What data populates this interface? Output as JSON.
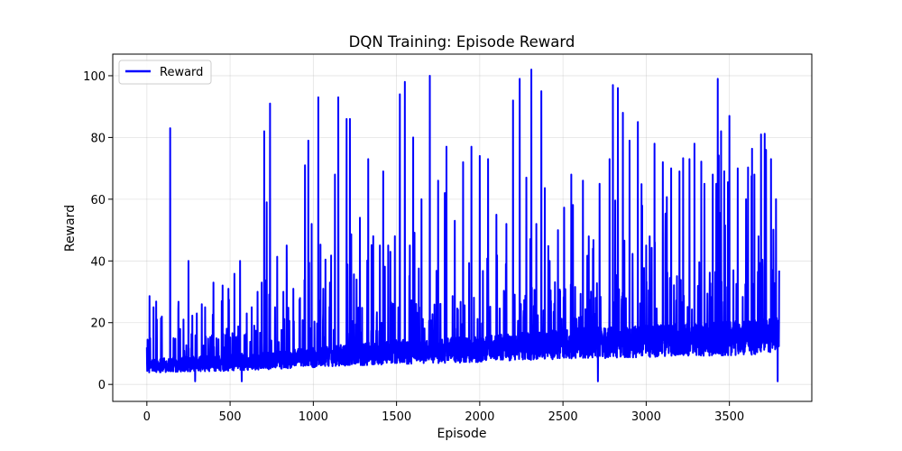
{
  "chart_data": {
    "type": "line",
    "title": "DQN Training: Episode Reward",
    "xlabel": "Episode",
    "ylabel": "Reward",
    "xlim": [
      -205,
      3995
    ],
    "ylim": [
      -5.5,
      107
    ],
    "xticks": [
      0,
      500,
      1000,
      1500,
      2000,
      2500,
      3000,
      3500
    ],
    "yticks": [
      0,
      20,
      40,
      60,
      80,
      100
    ],
    "grid": true,
    "legend_position": "top-left",
    "series": [
      {
        "name": "Reward",
        "color": "#0000ff",
        "episodes": 3800,
        "baseline_trend": [
          [
            0,
            7
          ],
          [
            500,
            8
          ],
          [
            1000,
            10
          ],
          [
            1500,
            12
          ],
          [
            2000,
            13
          ],
          [
            2500,
            15
          ],
          [
            3000,
            16
          ],
          [
            3500,
            17
          ],
          [
            3800,
            18
          ]
        ],
        "peaks": [
          [
            0,
            12
          ],
          [
            20,
            15
          ],
          [
            40,
            25
          ],
          [
            60,
            21
          ],
          [
            90,
            22
          ],
          [
            140,
            83
          ],
          [
            160,
            15
          ],
          [
            200,
            18
          ],
          [
            220,
            21
          ],
          [
            250,
            40
          ],
          [
            300,
            23
          ],
          [
            330,
            26
          ],
          [
            350,
            25
          ],
          [
            400,
            33
          ],
          [
            450,
            27
          ],
          [
            490,
            31
          ],
          [
            560,
            40
          ],
          [
            600,
            23
          ],
          [
            630,
            25
          ],
          [
            690,
            33
          ],
          [
            705,
            82
          ],
          [
            720,
            59
          ],
          [
            740,
            91
          ],
          [
            770,
            25
          ],
          [
            820,
            30
          ],
          [
            840,
            45
          ],
          [
            880,
            31
          ],
          [
            920,
            28
          ],
          [
            950,
            71
          ],
          [
            970,
            79
          ],
          [
            990,
            52
          ],
          [
            1030,
            93
          ],
          [
            1060,
            31
          ],
          [
            1100,
            33
          ],
          [
            1130,
            68
          ],
          [
            1150,
            93
          ],
          [
            1200,
            86
          ],
          [
            1220,
            86
          ],
          [
            1260,
            34
          ],
          [
            1280,
            54
          ],
          [
            1330,
            73
          ],
          [
            1360,
            48
          ],
          [
            1400,
            45
          ],
          [
            1420,
            69
          ],
          [
            1450,
            45
          ],
          [
            1490,
            48
          ],
          [
            1520,
            94
          ],
          [
            1550,
            98
          ],
          [
            1580,
            45
          ],
          [
            1600,
            80
          ],
          [
            1650,
            60
          ],
          [
            1700,
            100
          ],
          [
            1750,
            66
          ],
          [
            1790,
            62
          ],
          [
            1800,
            77
          ],
          [
            1850,
            53
          ],
          [
            1900,
            72
          ],
          [
            1950,
            77
          ],
          [
            2000,
            74
          ],
          [
            2050,
            73
          ],
          [
            2100,
            55
          ],
          [
            2160,
            52
          ],
          [
            2200,
            92
          ],
          [
            2240,
            99
          ],
          [
            2280,
            67
          ],
          [
            2310,
            102
          ],
          [
            2340,
            52
          ],
          [
            2370,
            95
          ],
          [
            2420,
            40
          ],
          [
            2470,
            50
          ],
          [
            2550,
            68
          ],
          [
            2620,
            66
          ],
          [
            2680,
            44
          ],
          [
            2720,
            65
          ],
          [
            2780,
            73
          ],
          [
            2800,
            97
          ],
          [
            2830,
            96
          ],
          [
            2860,
            88
          ],
          [
            2900,
            79
          ],
          [
            2950,
            85
          ],
          [
            3000,
            45
          ],
          [
            3050,
            78
          ],
          [
            3100,
            72
          ],
          [
            3150,
            70
          ],
          [
            3200,
            69
          ],
          [
            3260,
            73
          ],
          [
            3290,
            78
          ],
          [
            3350,
            65
          ],
          [
            3400,
            68
          ],
          [
            3430,
            99
          ],
          [
            3450,
            82
          ],
          [
            3500,
            87
          ],
          [
            3550,
            70
          ],
          [
            3600,
            60
          ],
          [
            3650,
            68
          ],
          [
            3690,
            81
          ],
          [
            3720,
            76
          ],
          [
            3750,
            73
          ],
          [
            3780,
            60
          ],
          [
            3800,
            25
          ]
        ],
        "troughs": [
          [
            290,
            1
          ],
          [
            570,
            1
          ],
          [
            2710,
            1
          ],
          [
            3790,
            1
          ]
        ]
      }
    ]
  }
}
